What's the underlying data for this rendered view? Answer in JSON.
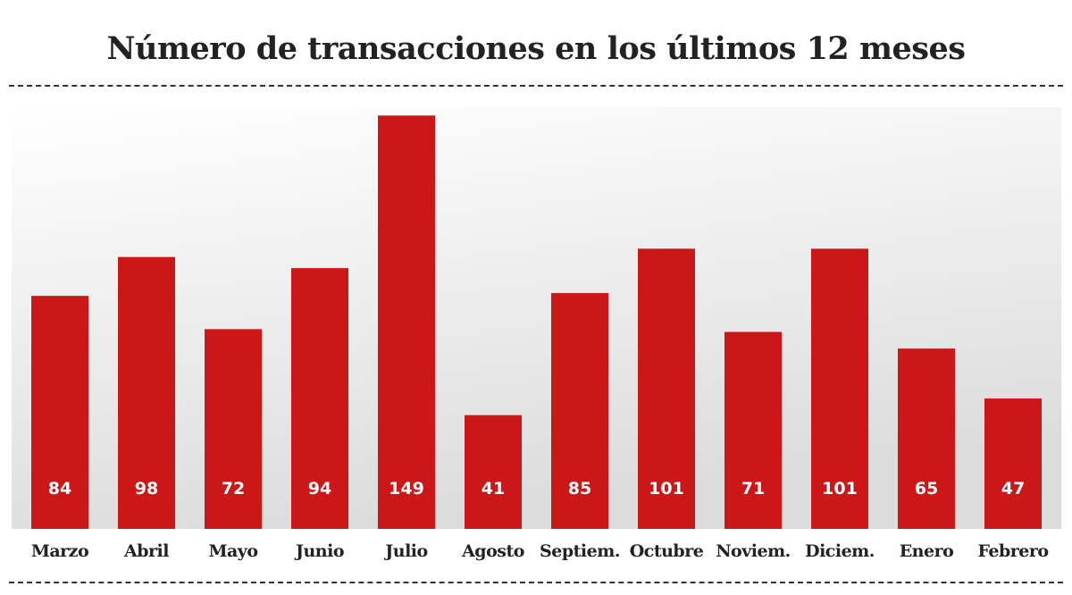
{
  "chart_data": {
    "type": "bar",
    "title": "Número de transacciones en los últimos 12 meses",
    "xlabel": "",
    "ylabel": "",
    "categories": [
      "Marzo",
      "Abril",
      "Mayo",
      "Junio",
      "Julio",
      "Agosto",
      "Septiem.",
      "Octubre",
      "Noviem.",
      "Diciem.",
      "Enero",
      "Febrero"
    ],
    "values": [
      84,
      98,
      72,
      94,
      149,
      41,
      85,
      101,
      71,
      101,
      65,
      47
    ],
    "ylim": [
      0,
      152
    ],
    "grid": false,
    "data_labels": "inside-bottom",
    "colors": {
      "bar": "#cc1719",
      "label": "#ffffff",
      "text": "#222222",
      "background_top": "#ffffff",
      "background_bottom": "#dcdcdc"
    }
  }
}
